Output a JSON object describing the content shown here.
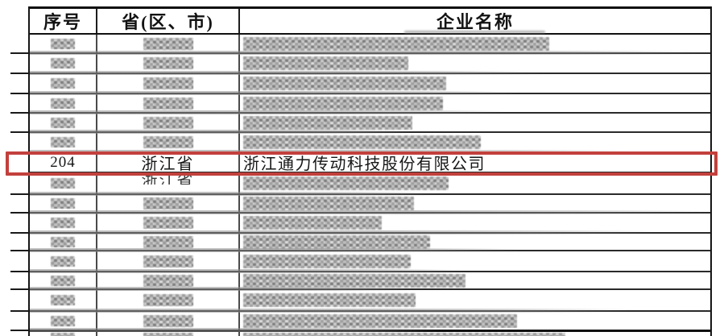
{
  "table": {
    "headers": [
      "序号",
      "省(区、市)",
      "企业名称"
    ],
    "highlight_color": "#c2403c",
    "rows": [
      {
        "type": "redacted",
        "company_blur": 380,
        "smear_pct": 100
      },
      {
        "type": "redacted",
        "company_blur": 205,
        "smear_pct": 76
      },
      {
        "type": "redacted",
        "company_blur": 252,
        "smear_pct": 72
      },
      {
        "type": "redacted",
        "company_blur": 248,
        "smear_pct": 70
      },
      {
        "type": "redacted",
        "company_blur": 210,
        "smear_pct": 56
      },
      {
        "type": "redacted",
        "company_blur": 295,
        "smear_pct": 88
      },
      {
        "type": "highlighted",
        "index": "204",
        "province": "浙江省",
        "company": "浙江通力传动科技股份有限公司"
      },
      {
        "type": "redacted",
        "province_partial": "浙江省",
        "company_blur": 255,
        "smear_pct": 60
      },
      {
        "type": "redacted",
        "company_blur": 212,
        "smear_pct": 100
      },
      {
        "type": "redacted",
        "company_blur": 172,
        "smear_pct": 92
      },
      {
        "type": "redacted",
        "company_blur": 232,
        "smear_pct": 72
      },
      {
        "type": "redacted",
        "company_blur": 208,
        "smear_pct": 64
      },
      {
        "type": "redacted",
        "company_blur": 276,
        "smear_pct": 56
      },
      {
        "type": "redacted",
        "company_blur": 214,
        "smear_pct": 88
      },
      {
        "type": "redacted",
        "company_blur": 340,
        "smear_pct": 60
      },
      {
        "type": "redacted-partial",
        "company_blur": 400
      }
    ]
  }
}
